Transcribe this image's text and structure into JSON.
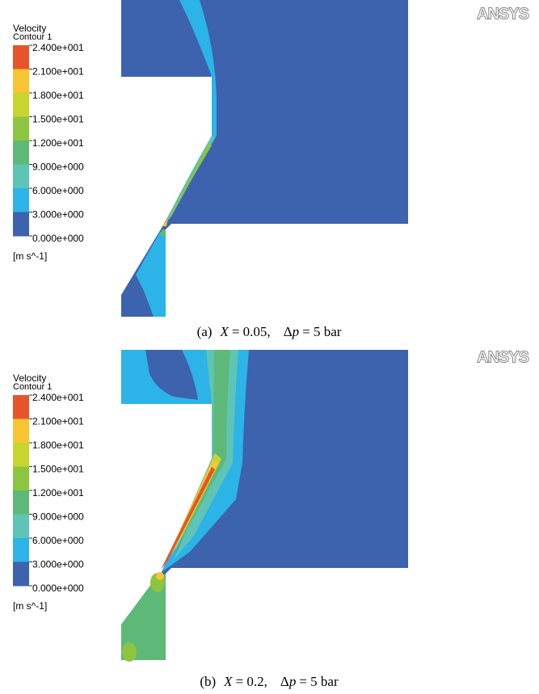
{
  "panels": [
    {
      "legend": {
        "title": "Velocity",
        "subtitle": "Contour 1",
        "labels": [
          "2.400e+001",
          "2.100e+001",
          "1.800e+001",
          "1.500e+001",
          "1.200e+001",
          "9.000e+000",
          "6.000e+000",
          "3.000e+000",
          "0.000e+000"
        ],
        "colors": [
          "#e8542a",
          "#f7c531",
          "#c6d530",
          "#8dc540",
          "#5eb877",
          "#5ec4b5",
          "#2cb3e8",
          "#3d62ae"
        ],
        "unit": "[m s^-1]"
      },
      "logo": "ANSYS",
      "caption": {
        "label": "(a)",
        "var": "X",
        "x_value": "= 0.05,",
        "dp_symbol": "Δ",
        "dp_var": "p",
        "dp_value": "= 5 bar"
      }
    },
    {
      "legend": {
        "title": "Velocity",
        "subtitle": "Contour 1",
        "labels": [
          "2.400e+001",
          "2.100e+001",
          "1.800e+001",
          "1.500e+001",
          "1.200e+001",
          "9.000e+000",
          "6.000e+000",
          "3.000e+000",
          "0.000e+000"
        ],
        "colors": [
          "#e8542a",
          "#f7c531",
          "#c6d530",
          "#8dc540",
          "#5eb877",
          "#5ec4b5",
          "#2cb3e8",
          "#3d62ae"
        ],
        "unit": "[m s^-1]"
      },
      "logo": "ANSYS",
      "caption": {
        "label": "(b)",
        "var": "X",
        "x_value": "= 0.2,",
        "dp_symbol": "Δ",
        "dp_var": "p",
        "dp_value": "= 5 bar"
      }
    }
  ]
}
